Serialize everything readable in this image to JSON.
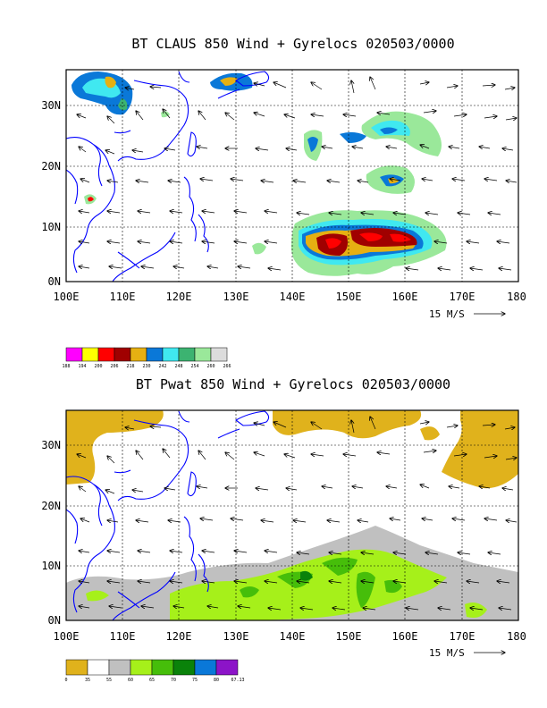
{
  "panels": [
    {
      "title": "BT CLAUS 850 Wind + Gyrelocs 020503/0000",
      "x_ticks": [
        "100E",
        "110E",
        "120E",
        "130E",
        "140E",
        "150E",
        "160E",
        "170E",
        "180"
      ],
      "y_ticks": [
        "0N",
        "10N",
        "20N",
        "30N"
      ],
      "vector_reference": "15 M/S",
      "legend": {
        "labels": [
          "188",
          "194",
          "200",
          "206",
          "218",
          "230",
          "242",
          "248",
          "254",
          "260",
          "266"
        ],
        "colors": [
          "#ff00ff",
          "#ffff00",
          "#ff0000",
          "#a00000",
          "#e6b012",
          "#0a78d8",
          "#40e8f0",
          "#3cb371",
          "#9ae89a",
          "#dcdcdc"
        ]
      }
    },
    {
      "title": "BT Pwat 850 Wind + Gyrelocs 020503/0000",
      "x_ticks": [
        "100E",
        "110E",
        "120E",
        "130E",
        "140E",
        "150E",
        "160E",
        "170E",
        "180"
      ],
      "y_ticks": [
        "0N",
        "10N",
        "20N",
        "30N"
      ],
      "vector_reference": "15 M/S",
      "legend": {
        "labels": [
          "0",
          "35",
          "55",
          "60",
          "65",
          "70",
          "75",
          "80",
          "67.13"
        ],
        "colors": [
          "#e0b21c",
          "#ffffff",
          "#c0c0c0",
          "#a6f01a",
          "#46be0a",
          "#0a820a",
          "#0a78d8",
          "#8c14c8"
        ]
      }
    }
  ],
  "map": {
    "lon_range": [
      100,
      180
    ],
    "lat_range": [
      0,
      35
    ],
    "coastline_color": "#0000ff",
    "grid": "dashed"
  }
}
